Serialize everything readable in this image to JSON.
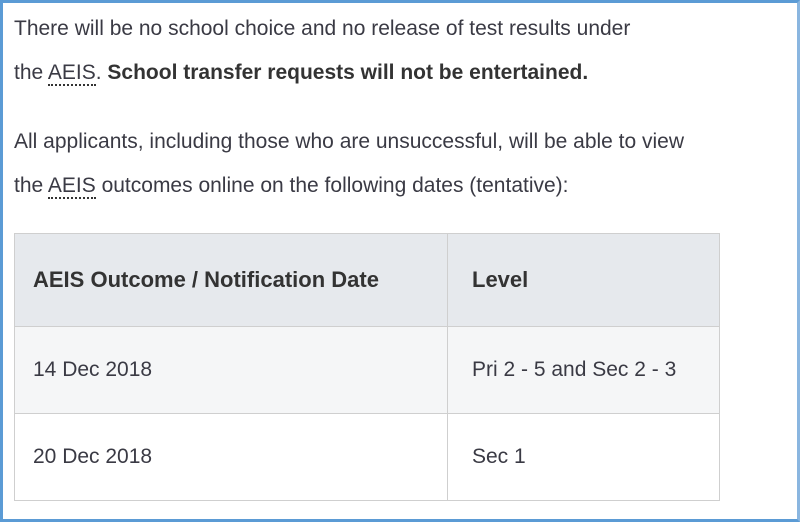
{
  "paragraph1": {
    "line1": "There will be no school choice and no release of test results under",
    "prefix": "the ",
    "abbr": "AEIS",
    "period": ".",
    "bold": " School transfer requests will not be entertained."
  },
  "paragraph2": {
    "line1": "All applicants, including those who are unsuccessful, will be able to view",
    "prefix": "the ",
    "abbr": "AEIS",
    "rest": " outcomes online on the following dates (tentative):"
  },
  "table": {
    "headers": [
      "AEIS Outcome / Notification Date",
      "Level"
    ],
    "rows": [
      [
        "14 Dec 2018",
        "Pri 2 - 5 and Sec 2 - 3"
      ],
      [
        "20 Dec 2018",
        "Sec 1"
      ]
    ]
  },
  "colors": {
    "frame_border": "#5b9bd5",
    "header_bg": "#e6e9ed"
  }
}
